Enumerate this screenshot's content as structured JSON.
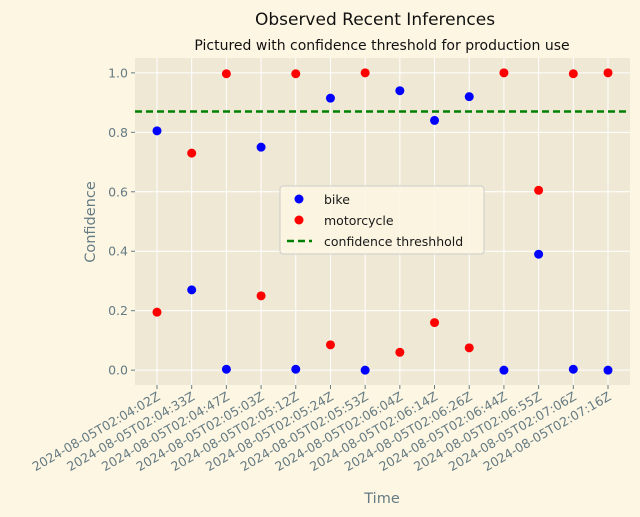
{
  "chart_data": {
    "type": "scatter",
    "title": "Observed Recent Inferences",
    "subtitle": "Pictured with confidence threshold for production use",
    "xlabel": "Time",
    "ylabel": "Confidence",
    "ylim": [
      -0.05,
      1.05
    ],
    "yticks": [
      0.0,
      0.2,
      0.4,
      0.6,
      0.8,
      1.0
    ],
    "grid": true,
    "legend_position": "center",
    "categories": [
      "2024-08-05T02:04:02Z",
      "2024-08-05T02:04:33Z",
      "2024-08-05T02:04:47Z",
      "2024-08-05T02:05:03Z",
      "2024-08-05T02:05:12Z",
      "2024-08-05T02:05:24Z",
      "2024-08-05T02:05:53Z",
      "2024-08-05T02:06:04Z",
      "2024-08-05T02:06:14Z",
      "2024-08-05T02:06:26Z",
      "2024-08-05T02:06:44Z",
      "2024-08-05T02:06:55Z",
      "2024-08-05T02:07:06Z",
      "2024-08-05T02:07:16Z"
    ],
    "series": [
      {
        "name": "bike",
        "color": "#0000ff",
        "values": [
          0.805,
          0.27,
          0.003,
          0.75,
          0.003,
          0.915,
          0.0,
          0.94,
          0.84,
          0.92,
          0.0,
          0.39,
          0.003,
          0.0
        ]
      },
      {
        "name": "motorcycle",
        "color": "#ff0000",
        "values": [
          0.195,
          0.73,
          0.997,
          0.25,
          0.997,
          0.085,
          1.0,
          0.06,
          0.16,
          0.075,
          1.0,
          0.605,
          0.997,
          1.0
        ]
      }
    ],
    "threshold": {
      "name": "confidence threshhold",
      "value": 0.87,
      "color": "#008000",
      "style": "dashed"
    }
  }
}
